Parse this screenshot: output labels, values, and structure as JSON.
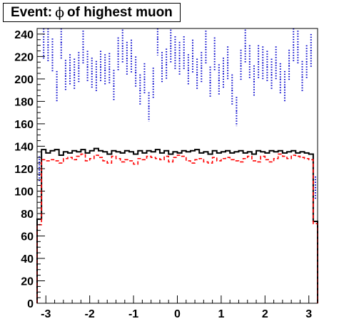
{
  "title": {
    "prefix": "Event:",
    "symbol": "ϕ",
    "suffix": "of highest muon"
  },
  "chart_data": {
    "type": "histogram",
    "title": "Event: ϕ of highest muon",
    "xlabel": "",
    "ylabel": "",
    "xlim": [
      -3.2,
      3.2
    ],
    "ylim": [
      0,
      245
    ],
    "grid": false,
    "x_ticks": [
      -3,
      -2,
      -1,
      0,
      1,
      2,
      3
    ],
    "x_tick_labels": [
      "-3",
      "-2",
      "-1",
      "0",
      "1",
      "2",
      "3"
    ],
    "y_ticks": [
      0,
      20,
      40,
      60,
      80,
      100,
      120,
      140,
      160,
      180,
      200,
      220,
      240
    ],
    "y_tick_labels": [
      "0",
      "20",
      "40",
      "60",
      "80",
      "100",
      "120",
      "140",
      "160",
      "180",
      "200",
      "220",
      "240"
    ],
    "bin_edges": [
      -3.2,
      -3.1,
      -3.0,
      -2.9,
      -2.8,
      -2.7,
      -2.6,
      -2.5,
      -2.4,
      -2.3,
      -2.2,
      -2.1,
      -2.0,
      -1.9,
      -1.8,
      -1.7,
      -1.6,
      -1.5,
      -1.4,
      -1.3,
      -1.2,
      -1.1,
      -1.0,
      -0.9,
      -0.8,
      -0.7,
      -0.6,
      -0.5,
      -0.4,
      -0.3,
      -0.2,
      -0.1,
      0.0,
      0.1,
      0.2,
      0.3,
      0.4,
      0.5,
      0.6,
      0.7,
      0.8,
      0.9,
      1.0,
      1.1,
      1.2,
      1.3,
      1.4,
      1.5,
      1.6,
      1.7,
      1.8,
      1.9,
      2.0,
      2.1,
      2.2,
      2.3,
      2.4,
      2.5,
      2.6,
      2.7,
      2.8,
      2.9,
      3.0,
      3.1,
      3.2
    ],
    "series": [
      {
        "style": "solid",
        "color": "#000000",
        "values": [
          75,
          137,
          134,
          136,
          137,
          132,
          135,
          134,
          136,
          135,
          137,
          134,
          136,
          138,
          136,
          135,
          133,
          136,
          135,
          134,
          136,
          135,
          133,
          136,
          134,
          136,
          135,
          137,
          134,
          136,
          133,
          135,
          134,
          136,
          135,
          136,
          137,
          134,
          135,
          133,
          136,
          134,
          135,
          136,
          134,
          135,
          136,
          134,
          135,
          133,
          136,
          135,
          134,
          136,
          135,
          136,
          134,
          135,
          136,
          134,
          135,
          134,
          133,
          73
        ]
      },
      {
        "style": "dashed",
        "color": "#ff0000",
        "values": [
          70,
          128,
          127,
          128,
          127,
          125,
          129,
          130,
          128,
          131,
          133,
          127,
          129,
          132,
          130,
          127,
          125,
          131,
          129,
          126,
          128,
          127,
          124,
          129,
          128,
          131,
          130,
          129,
          128,
          131,
          126,
          130,
          132,
          131,
          127,
          125,
          128,
          129,
          126,
          125,
          130,
          127,
          129,
          130,
          128,
          127,
          126,
          129,
          131,
          127,
          126,
          131,
          128,
          126,
          129,
          133,
          131,
          129,
          132,
          131,
          130,
          129,
          128,
          71
        ]
      },
      {
        "style": "error-bars",
        "color": "#0000cc",
        "values": [
          120,
          233,
          230,
          221,
          193,
          232,
          203,
          208,
          204,
          210,
          228,
          211,
          205,
          202,
          211,
          208,
          209,
          194,
          222,
          229,
          218,
          220,
          206,
          190,
          200,
          175,
          196,
          236,
          210,
          213,
          229,
          223,
          218,
          223,
          208,
          220,
          204,
          210,
          228,
          197,
          222,
          199,
          205,
          214,
          190,
          171,
          212,
          229,
          215,
          198,
          215,
          214,
          211,
          204,
          214,
          200,
          193,
          212,
          230,
          228,
          202,
          215,
          225,
          103
        ],
        "errors": [
          11,
          15,
          15,
          15,
          14,
          15,
          14,
          14,
          14,
          14,
          15,
          14,
          14,
          14,
          14,
          14,
          14,
          14,
          15,
          15,
          15,
          15,
          14,
          14,
          14,
          13,
          14,
          15,
          14,
          14,
          15,
          15,
          15,
          15,
          14,
          15,
          14,
          14,
          15,
          14,
          15,
          14,
          14,
          15,
          14,
          13,
          14,
          15,
          15,
          14,
          15,
          15,
          14,
          14,
          15,
          14,
          14,
          14,
          15,
          15,
          14,
          15,
          15,
          10
        ]
      }
    ]
  }
}
